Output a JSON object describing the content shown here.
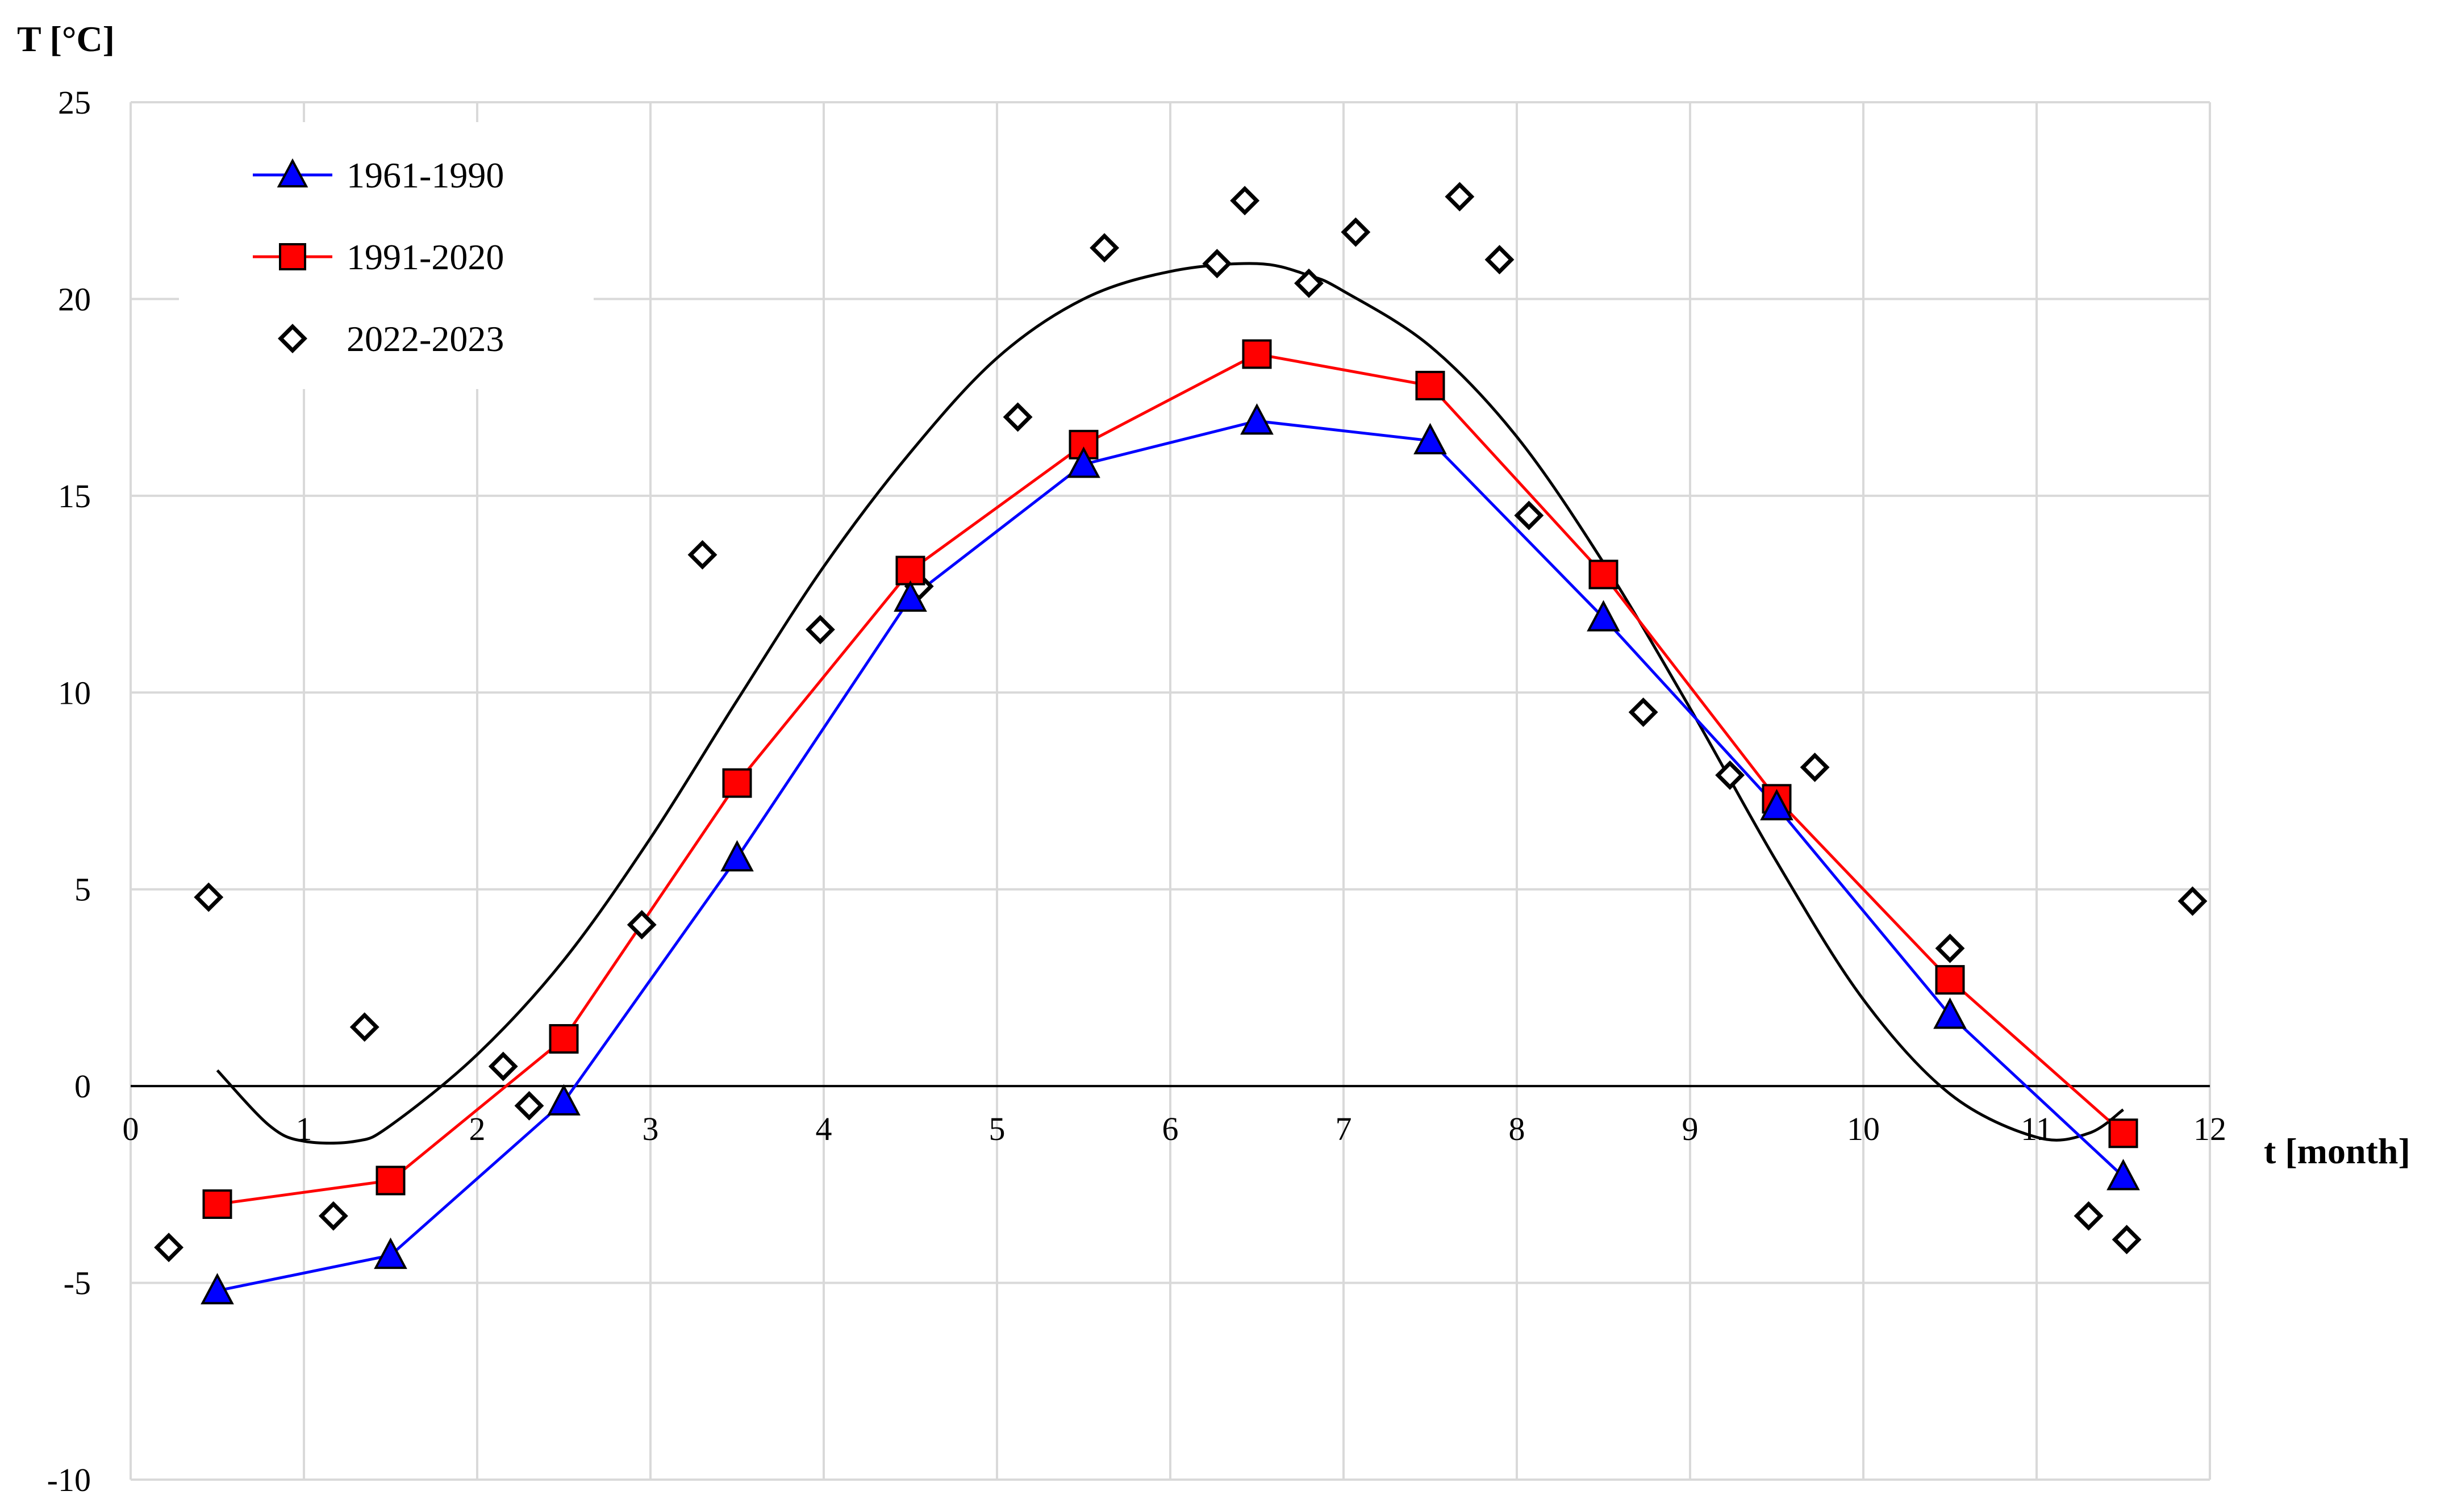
{
  "chart_data": {
    "type": "line",
    "xlabel": "t [month]",
    "ylabel": "T [°C]",
    "xlim": [
      0,
      12
    ],
    "ylim": [
      -10,
      25
    ],
    "xticks": [
      0,
      1,
      2,
      3,
      4,
      5,
      6,
      7,
      8,
      9,
      10,
      11,
      12
    ],
    "yticks": [
      -10,
      -5,
      0,
      5,
      10,
      15,
      20,
      25
    ],
    "grid": true,
    "legend_position": "top-left",
    "series": [
      {
        "name": "1961-1990",
        "marker": "triangle",
        "color": "#0000ff",
        "marker_fill": "#0000ff",
        "x": [
          0.5,
          1.5,
          2.5,
          3.5,
          4.5,
          5.5,
          6.5,
          7.5,
          8.5,
          9.5,
          10.5,
          11.5
        ],
        "values": [
          -5.2,
          -4.3,
          -0.4,
          5.8,
          12.4,
          15.8,
          16.9,
          16.4,
          11.9,
          7.1,
          1.8,
          -2.3
        ]
      },
      {
        "name": "1991-2020",
        "marker": "square",
        "color": "#ff0000",
        "marker_fill": "#ff0000",
        "x": [
          0.5,
          1.5,
          2.5,
          3.5,
          4.5,
          5.5,
          6.5,
          7.5,
          8.5,
          9.5,
          10.5,
          11.5
        ],
        "values": [
          -3.0,
          -2.4,
          1.2,
          7.7,
          13.1,
          16.3,
          18.6,
          17.8,
          13.0,
          7.3,
          2.7,
          -1.2
        ]
      },
      {
        "name": "2022-2023",
        "marker": "diamond-open",
        "color": "#000000",
        "x": [
          0.22,
          0.45,
          1.17,
          1.35,
          2.15,
          2.3,
          2.95,
          3.3,
          3.98,
          4.55,
          5.12,
          5.62,
          6.27,
          6.43,
          6.8,
          7.07,
          7.67,
          7.9,
          8.07,
          8.73,
          9.23,
          9.72,
          10.5,
          11.3,
          11.52,
          11.9
        ],
        "values": [
          -4.1,
          4.8,
          -3.3,
          1.5,
          0.5,
          -0.5,
          4.1,
          13.5,
          11.6,
          12.7,
          17.0,
          21.3,
          20.9,
          22.5,
          20.4,
          21.7,
          22.6,
          21.0,
          14.5,
          9.5,
          7.9,
          8.1,
          3.5,
          -3.3,
          -3.9,
          4.7
        ]
      },
      {
        "name": "",
        "marker": "none",
        "color": "#000000",
        "x": [
          0.5,
          0.8,
          1.0,
          1.3,
          1.5,
          2.0,
          2.5,
          3.0,
          3.5,
          4.0,
          4.5,
          5.0,
          5.5,
          6.0,
          6.5,
          6.8,
          7.0,
          7.5,
          8.0,
          8.5,
          9.0,
          9.5,
          10.0,
          10.5,
          11.0,
          11.3,
          11.5
        ],
        "values": [
          0.4,
          -1.0,
          -1.4,
          -1.4,
          -1.0,
          0.8,
          3.2,
          6.3,
          9.8,
          13.2,
          16.1,
          18.5,
          20.0,
          20.7,
          20.9,
          20.6,
          20.2,
          18.8,
          16.5,
          13.3,
          9.6,
          5.7,
          2.2,
          -0.2,
          -1.3,
          -1.2,
          -0.6
        ]
      }
    ]
  }
}
